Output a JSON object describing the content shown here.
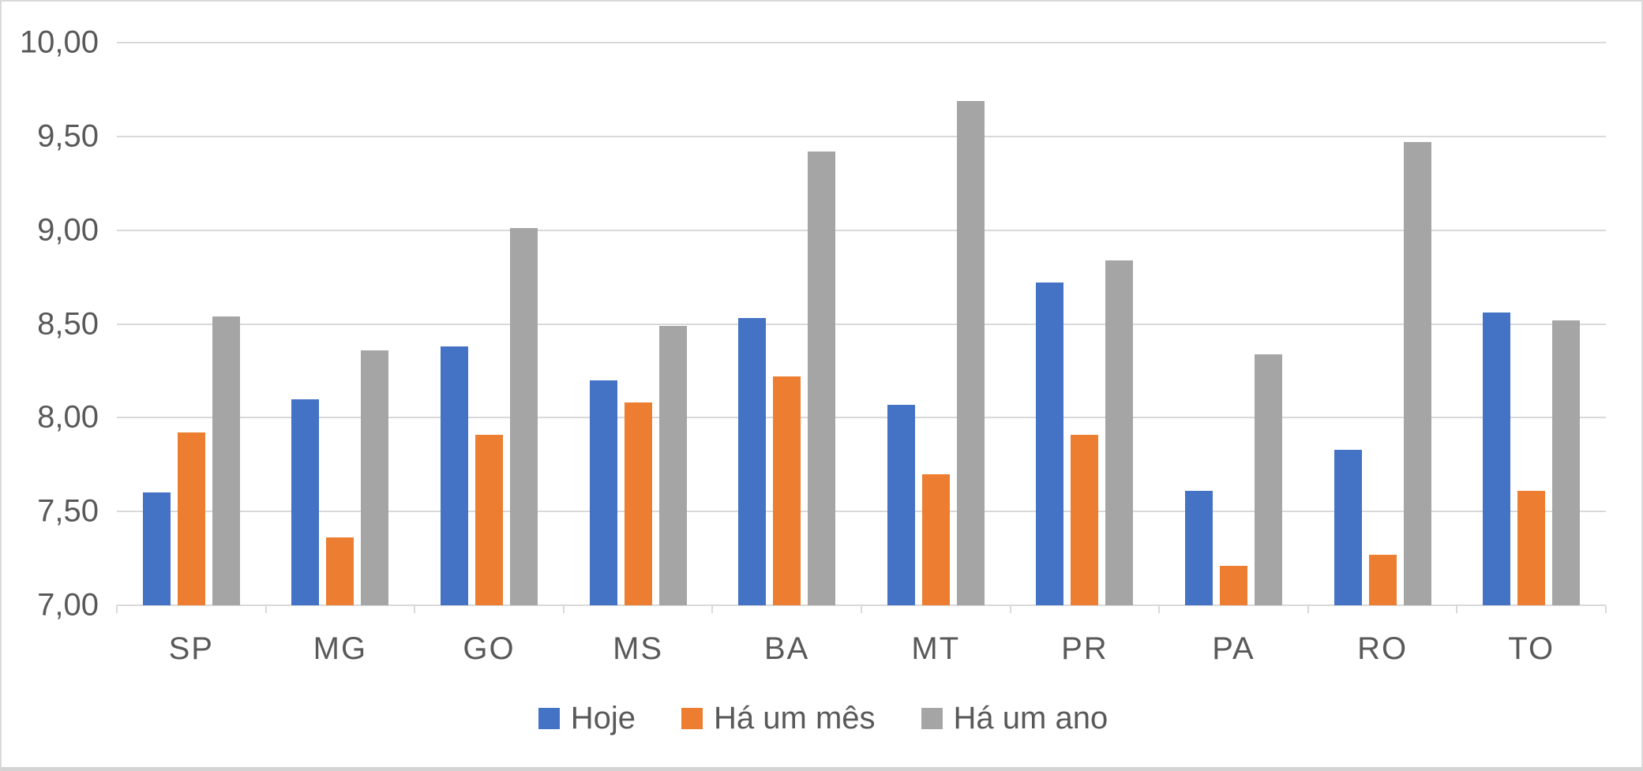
{
  "chart_data": {
    "type": "bar",
    "title": "",
    "categories": [
      "SP",
      "MG",
      "GO",
      "MS",
      "BA",
      "MT",
      "PR",
      "PA",
      "RO",
      "TO"
    ],
    "series": [
      {
        "name": "Hoje",
        "color": "#4472C4",
        "values": [
          7.6,
          8.1,
          8.38,
          8.2,
          8.53,
          8.07,
          8.72,
          7.61,
          7.83,
          8.56
        ]
      },
      {
        "name": "Há um mês",
        "color": "#ED7D31",
        "values": [
          7.92,
          7.36,
          7.91,
          8.08,
          8.22,
          7.7,
          7.91,
          7.21,
          7.27,
          7.61
        ]
      },
      {
        "name": "Há um ano",
        "color": "#A5A5A5",
        "values": [
          8.54,
          8.36,
          9.01,
          8.49,
          9.42,
          9.69,
          8.84,
          8.34,
          9.47,
          8.52
        ]
      }
    ],
    "ylim": [
      7.0,
      10.0
    ],
    "ytick_step": 0.5,
    "ytick_labels": [
      "7,00",
      "7,50",
      "8,00",
      "8,50",
      "9,00",
      "9,50",
      "10,00"
    ],
    "xlabel": "",
    "ylabel": "",
    "grid": "horizontal",
    "legend_position": "bottom"
  },
  "colors": {
    "gridline": "#d9d9d9",
    "axis_text": "#595959",
    "frame_border": "#d9d9d9",
    "background": "#ffffff"
  }
}
